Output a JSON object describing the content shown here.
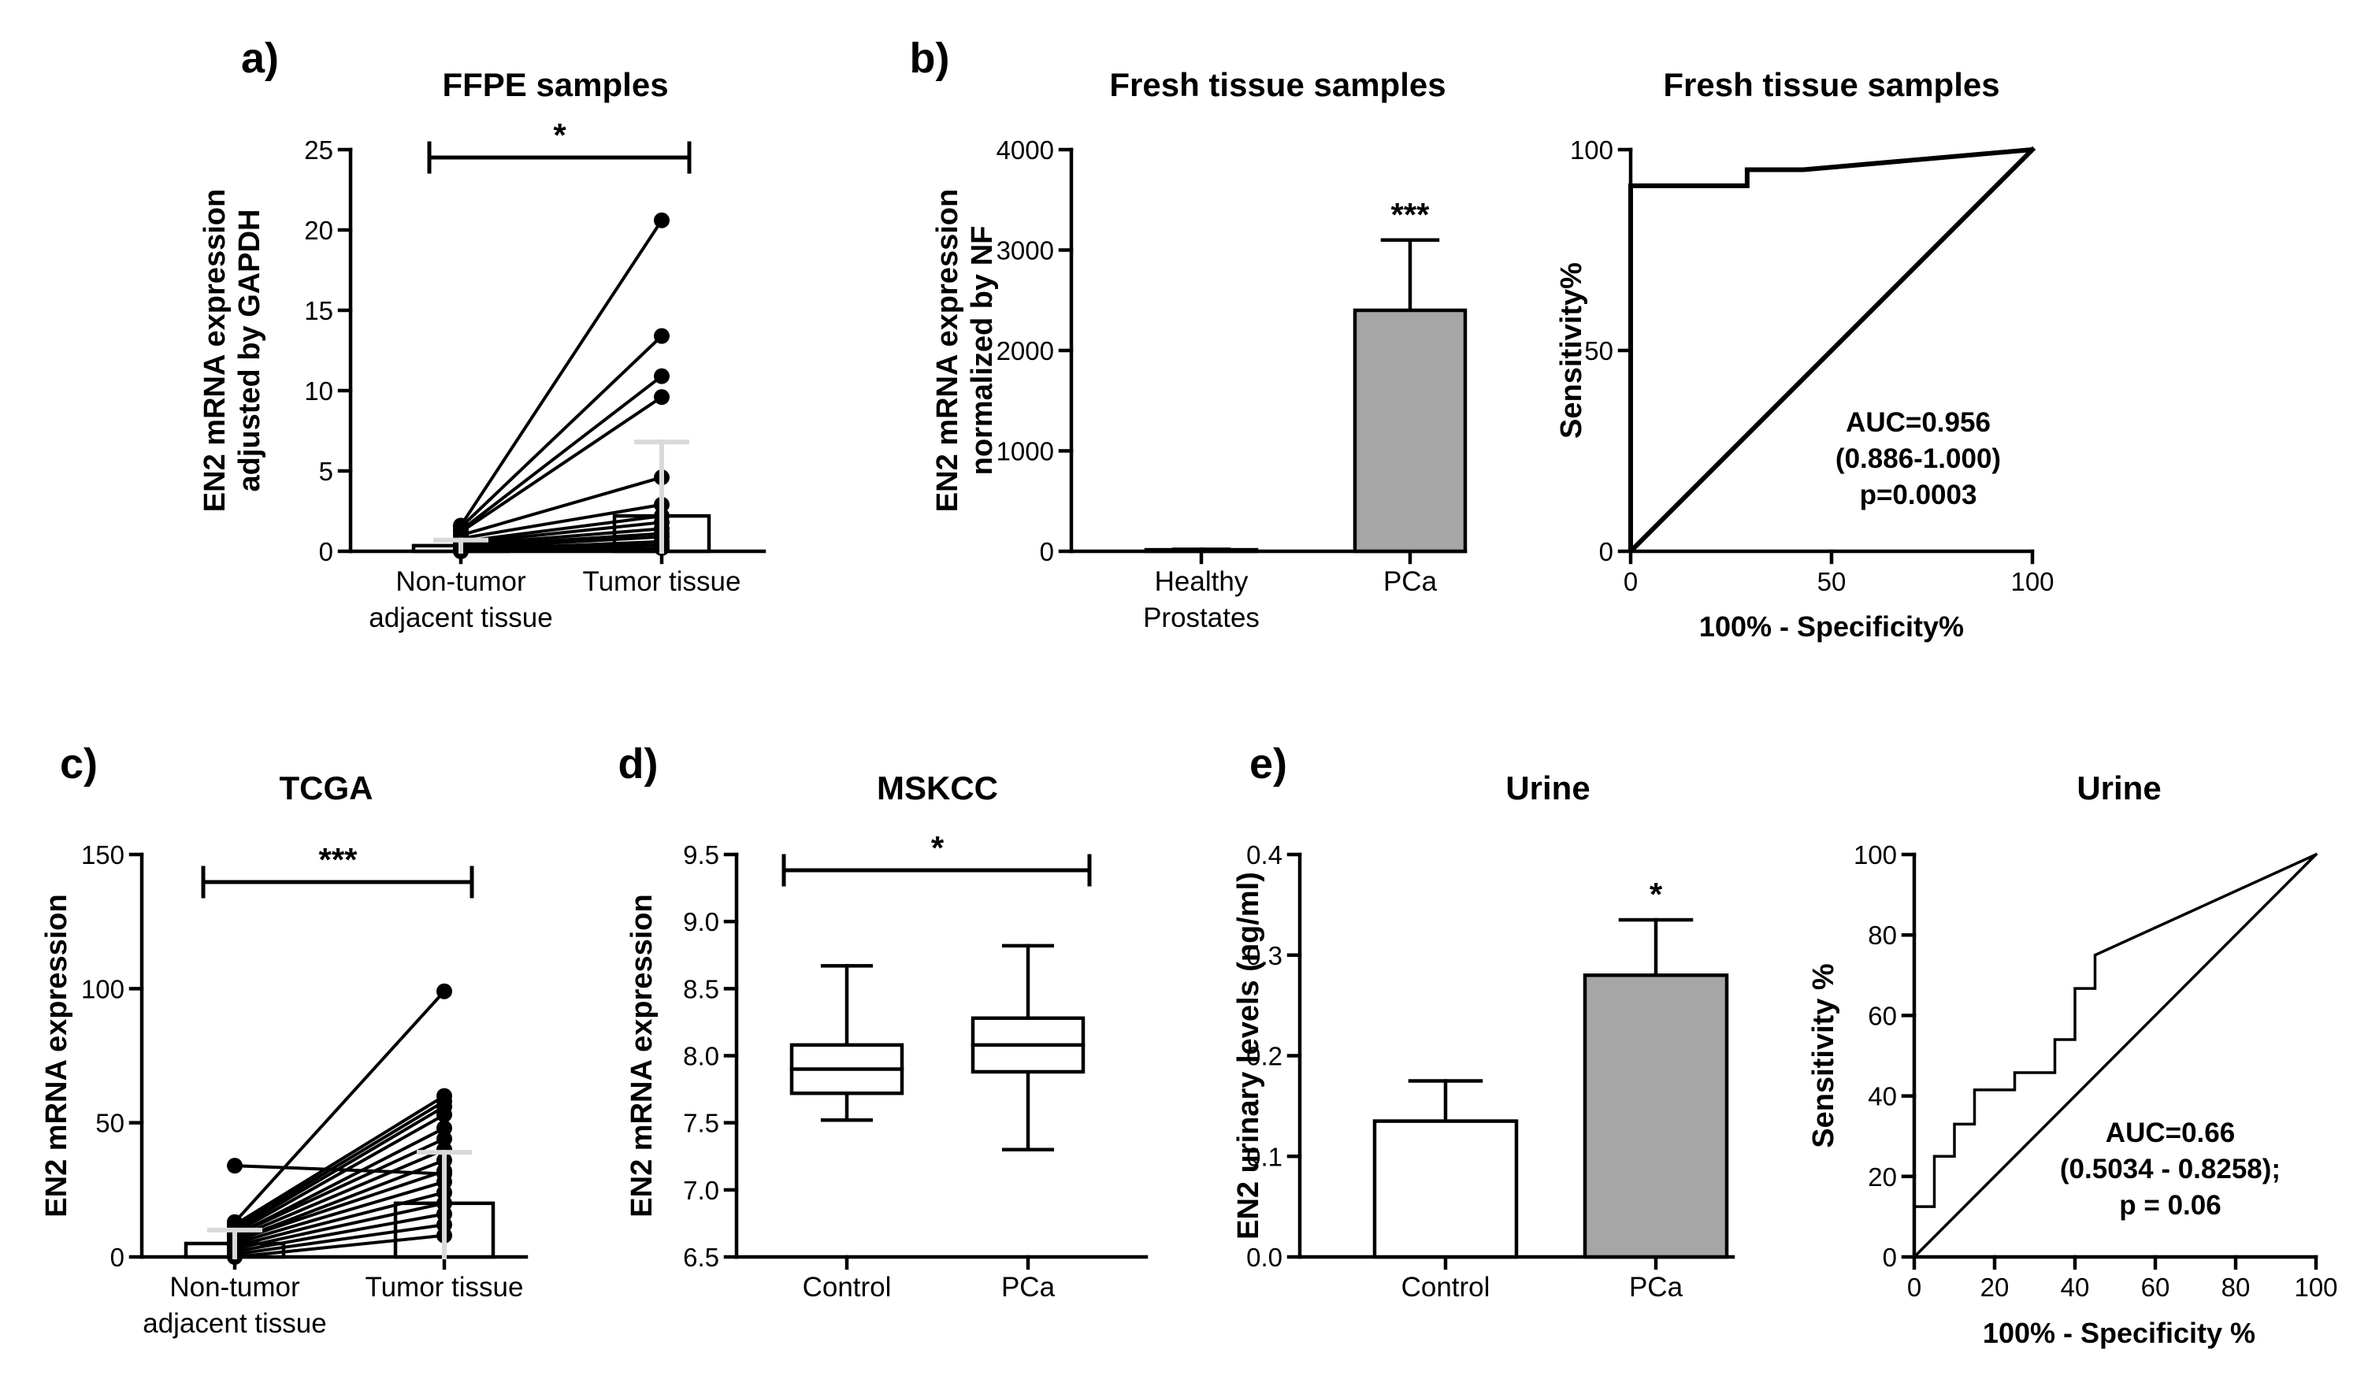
{
  "colors": {
    "ink": "#000000",
    "gray_bar": "#a6a6a6",
    "error_gray": "#d9d9d9",
    "white": "#ffffff"
  },
  "chart_data": [
    {
      "id": "a",
      "panel_label": "a)",
      "type": "paired_scatter_bar",
      "title": "FFPE samples",
      "ylabel_lines": [
        "EN2 mRNA expression",
        "adjusted by GAPDH"
      ],
      "categories": [
        [
          "Non-tumor",
          "adjacent tissue"
        ],
        [
          "Tumor tissue"
        ]
      ],
      "ylim": [
        0,
        25
      ],
      "yticks": [
        0,
        5,
        10,
        15,
        20,
        25
      ],
      "ytick_labels": [
        "0",
        "5",
        "10",
        "15",
        "20",
        "25"
      ],
      "bar_means": [
        0.35,
        2.2
      ],
      "bar_sd": [
        0.35,
        4.6
      ],
      "pairs": [
        [
          1.6,
          20.6
        ],
        [
          1.5,
          13.4
        ],
        [
          1.3,
          10.9
        ],
        [
          1.2,
          9.6
        ],
        [
          1.0,
          4.6
        ],
        [
          0.8,
          2.9
        ],
        [
          0.6,
          2.2
        ],
        [
          0.5,
          1.8
        ],
        [
          0.4,
          1.4
        ],
        [
          0.3,
          1.1
        ],
        [
          0.2,
          0.9
        ],
        [
          0.1,
          0.6
        ],
        [
          0.05,
          0.4
        ],
        [
          0.0,
          0.2
        ]
      ],
      "significance": "*"
    },
    {
      "id": "b1",
      "panel_label": "b)",
      "type": "bar",
      "title": "Fresh tissue samples",
      "ylabel_lines": [
        "EN2 mRNA expression",
        "normalized by NF"
      ],
      "categories": [
        [
          "Healthy",
          "Prostates"
        ],
        [
          "PCa"
        ]
      ],
      "values": [
        15,
        2400
      ],
      "errors": [
        5,
        700
      ],
      "ylim": [
        0,
        4000
      ],
      "yticks": [
        0,
        1000,
        2000,
        3000,
        4000
      ],
      "ytick_labels": [
        "0",
        "1000",
        "2000",
        "3000",
        "4000"
      ],
      "significance": "***"
    },
    {
      "id": "b2",
      "type": "line",
      "title": "Fresh tissue samples",
      "xlabel": "100% - Specificity%",
      "ylabel_lines": [
        "Sensitivity%"
      ],
      "xlim": [
        0,
        100
      ],
      "ylim": [
        0,
        100
      ],
      "xticks": [
        0,
        50,
        100
      ],
      "xtick_labels": [
        "0",
        "50",
        "100"
      ],
      "yticks": [
        0,
        50,
        100
      ],
      "ytick_labels": [
        "0",
        "50",
        "100"
      ],
      "roc": [
        [
          0,
          0
        ],
        [
          0,
          91
        ],
        [
          29,
          91
        ],
        [
          29,
          95
        ],
        [
          43,
          95
        ],
        [
          100,
          100
        ]
      ],
      "annotation": [
        "AUC=0.956",
        "(0.886-1.000)",
        "p=0.0003"
      ]
    },
    {
      "id": "c",
      "panel_label": "c)",
      "type": "paired_scatter_bar",
      "title": "TCGA",
      "ylabel_lines": [
        "EN2 mRNA expression"
      ],
      "categories": [
        [
          "Non-tumor",
          "adjacent tissue"
        ],
        [
          "Tumor tissue"
        ]
      ],
      "ylim": [
        0,
        150
      ],
      "yticks": [
        0,
        50,
        100,
        150
      ],
      "ytick_labels": [
        "0",
        "50",
        "100",
        "150"
      ],
      "bar_means": [
        5,
        20
      ],
      "bar_sd": [
        5,
        19
      ],
      "pairs": [
        [
          34,
          31
        ],
        [
          13,
          99
        ],
        [
          12,
          60
        ],
        [
          11,
          58
        ],
        [
          10,
          56
        ],
        [
          9,
          53
        ],
        [
          8,
          48
        ],
        [
          8,
          44
        ],
        [
          7,
          40
        ],
        [
          6,
          36
        ],
        [
          6,
          32
        ],
        [
          5,
          28
        ],
        [
          4,
          24
        ],
        [
          3,
          20
        ],
        [
          2,
          16
        ],
        [
          1,
          12
        ],
        [
          0,
          8
        ]
      ],
      "significance": "***"
    },
    {
      "id": "d",
      "panel_label": "d)",
      "type": "box",
      "title": "MSKCC",
      "ylabel_lines": [
        "EN2 mRNA expression"
      ],
      "categories": [
        [
          "Control"
        ],
        [
          "PCa"
        ]
      ],
      "ylim": [
        6.5,
        9.5
      ],
      "yticks": [
        6.5,
        7.0,
        7.5,
        8.0,
        8.5,
        9.0,
        9.5
      ],
      "ytick_labels": [
        "6.5",
        "7.0",
        "7.5",
        "8.0",
        "8.5",
        "9.0",
        "9.5"
      ],
      "boxes": [
        {
          "min": 7.52,
          "q1": 7.72,
          "median": 7.9,
          "q3": 8.08,
          "max": 8.67
        },
        {
          "min": 7.3,
          "q1": 7.88,
          "median": 8.08,
          "q3": 8.28,
          "max": 8.82
        }
      ],
      "significance": "*"
    },
    {
      "id": "e1",
      "panel_label": "e)",
      "type": "bar",
      "title": "Urine",
      "ylabel_lines": [
        "EN2 urinary levels  (ng/ml)"
      ],
      "categories": [
        [
          "Control"
        ],
        [
          "PCa"
        ]
      ],
      "values": [
        0.135,
        0.28
      ],
      "errors": [
        0.04,
        0.055
      ],
      "ylim": [
        0,
        0.4
      ],
      "yticks": [
        0,
        0.1,
        0.2,
        0.3,
        0.4
      ],
      "ytick_labels": [
        "0.0",
        "0.1",
        "0.2",
        "0.3",
        "0.4"
      ],
      "significance": "*"
    },
    {
      "id": "e2",
      "type": "line",
      "title": "Urine",
      "xlabel": "100% - Specificity %",
      "ylabel_lines": [
        "Sensitivity %"
      ],
      "xlim": [
        0,
        100
      ],
      "ylim": [
        0,
        100
      ],
      "xticks": [
        0,
        20,
        40,
        60,
        80,
        100
      ],
      "xtick_labels": [
        "0",
        "20",
        "40",
        "60",
        "80",
        "100"
      ],
      "yticks": [
        0,
        20,
        40,
        60,
        80,
        100
      ],
      "ytick_labels": [
        "0",
        "20",
        "40",
        "60",
        "80",
        "100"
      ],
      "roc": [
        [
          0,
          0
        ],
        [
          0,
          12.5
        ],
        [
          5,
          12.5
        ],
        [
          5,
          25
        ],
        [
          10,
          25
        ],
        [
          10,
          33
        ],
        [
          15,
          33
        ],
        [
          15,
          41.5
        ],
        [
          25,
          41.5
        ],
        [
          25,
          45.8
        ],
        [
          35,
          45.8
        ],
        [
          35,
          54
        ],
        [
          40,
          54
        ],
        [
          40,
          66.7
        ],
        [
          45,
          66.7
        ],
        [
          45,
          75
        ],
        [
          100,
          100
        ]
      ],
      "annotation": [
        "AUC=0.66",
        "(0.5034 - 0.8258);",
        "p = 0.06"
      ]
    }
  ]
}
